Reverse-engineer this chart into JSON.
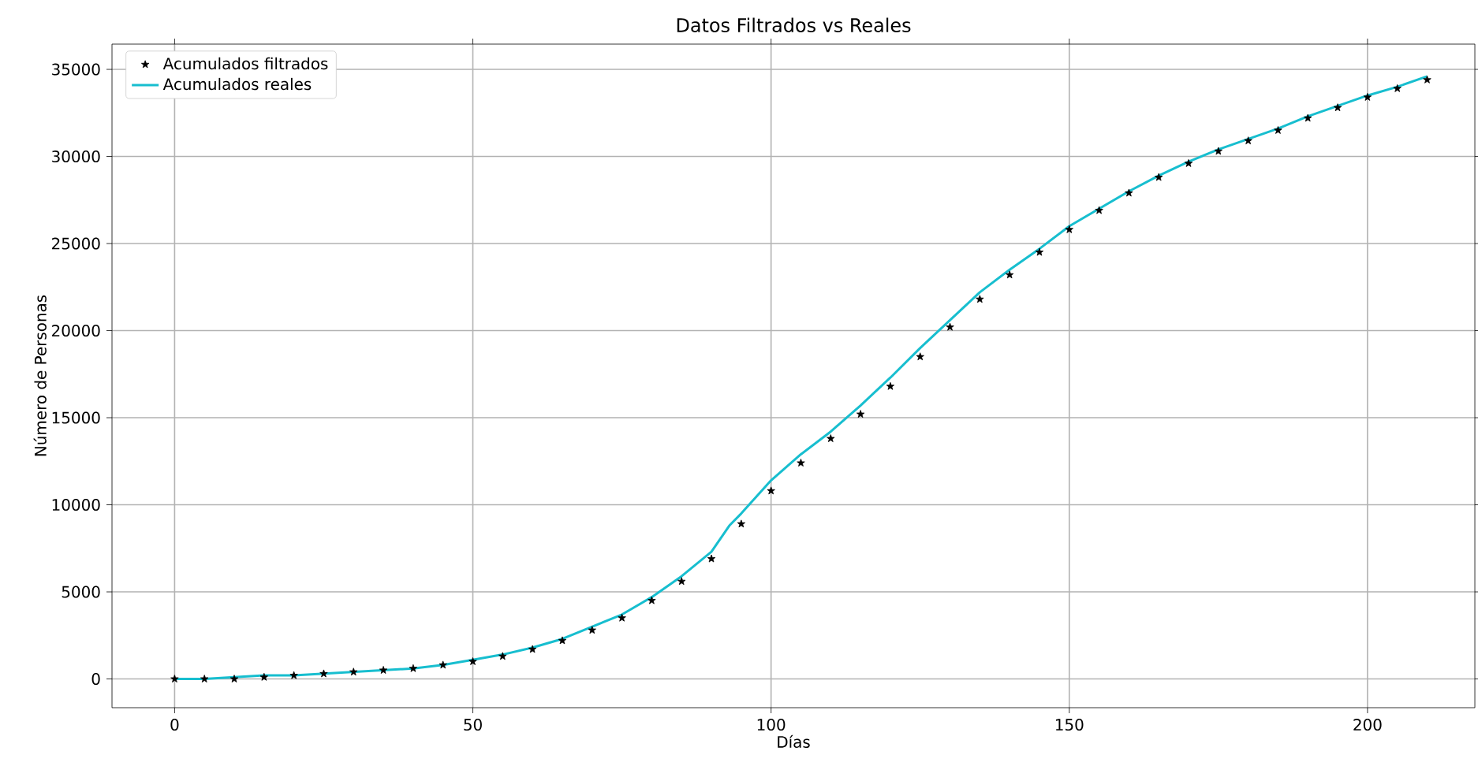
{
  "chart_data": {
    "type": "line",
    "title": "Datos Filtrados vs Reales",
    "xlabel": "Días",
    "ylabel": "Número de Personas",
    "xlim": [
      -10.5,
      218
    ],
    "ylim": [
      -1650,
      36450
    ],
    "xticks": [
      0,
      50,
      100,
      150,
      200
    ],
    "yticks": [
      0,
      5000,
      10000,
      15000,
      20000,
      25000,
      30000,
      35000
    ],
    "grid": true,
    "legend": "top left",
    "series": [
      {
        "name": "Acumulados filtrados",
        "type": "scatter",
        "marker": "star",
        "color": "#000000",
        "x": [
          0,
          5,
          10,
          15,
          20,
          25,
          30,
          35,
          40,
          45,
          50,
          55,
          60,
          65,
          70,
          75,
          80,
          85,
          90,
          95,
          100,
          105,
          110,
          115,
          120,
          125,
          130,
          135,
          140,
          145,
          150,
          155,
          160,
          165,
          170,
          175,
          180,
          185,
          190,
          195,
          200,
          205,
          210
        ],
        "values": [
          0,
          0,
          0,
          100,
          200,
          300,
          400,
          500,
          600,
          800,
          1000,
          1300,
          1700,
          2200,
          2800,
          3500,
          4500,
          5600,
          6900,
          8900,
          10800,
          12400,
          13800,
          15200,
          16800,
          18500,
          20200,
          21800,
          23200,
          24500,
          25800,
          26900,
          27900,
          28800,
          29600,
          30300,
          30900,
          31500,
          32200,
          32800,
          33400,
          33900,
          34400
        ]
      },
      {
        "name": "Acumulados reales",
        "marker": "none",
        "color": "#17becf",
        "x": [
          0,
          5,
          10,
          15,
          20,
          25,
          30,
          35,
          40,
          45,
          50,
          55,
          60,
          65,
          70,
          75,
          80,
          85,
          90,
          93,
          95,
          100,
          105,
          110,
          115,
          120,
          125,
          130,
          135,
          140,
          145,
          150,
          155,
          160,
          165,
          170,
          175,
          180,
          185,
          190,
          195,
          200,
          205,
          210
        ],
        "values": [
          0,
          0,
          100,
          200,
          200,
          300,
          400,
          500,
          600,
          800,
          1100,
          1400,
          1800,
          2300,
          3000,
          3700,
          4700,
          5900,
          7300,
          8800,
          9500,
          11400,
          12900,
          14200,
          15700,
          17300,
          19000,
          20600,
          22200,
          23500,
          24700,
          26000,
          27000,
          28000,
          28900,
          29700,
          30400,
          31000,
          31600,
          32300,
          32900,
          33500,
          34000,
          34600
        ]
      }
    ]
  }
}
